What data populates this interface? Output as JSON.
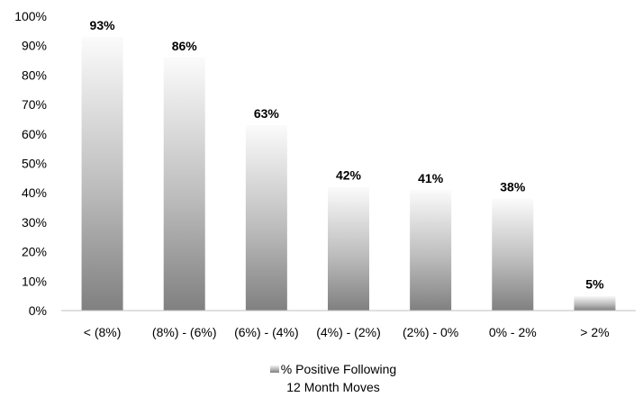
{
  "chart_data": {
    "type": "bar",
    "title": "",
    "xlabel": "",
    "ylabel": "",
    "categories": [
      "< (8%)",
      "(8%) - (6%)",
      "(6%) - (4%)",
      "(4%) - (2%)",
      "(2%) - 0%",
      "0% - 2%",
      "> 2%"
    ],
    "series": [
      {
        "name": "% Positive Following 12 Month Moves",
        "values": [
          93,
          86,
          63,
          42,
          41,
          38,
          5
        ],
        "data_labels": [
          "93%",
          "86%",
          "63%",
          "42%",
          "41%",
          "38%",
          "5%"
        ]
      }
    ],
    "ylim": [
      0,
      100
    ],
    "y_ticks": [
      "0%",
      "10%",
      "20%",
      "30%",
      "40%",
      "50%",
      "60%",
      "70%",
      "80%",
      "90%",
      "100%"
    ],
    "grid": false,
    "legend_position": "bottom",
    "colors": {
      "bar_top": "#f2f2f2",
      "bar_bottom": "#7f7f7f",
      "axis": "#bfbfbf"
    }
  },
  "legend": {
    "line1": "% Positive Following",
    "line2": "12 Month Moves"
  }
}
